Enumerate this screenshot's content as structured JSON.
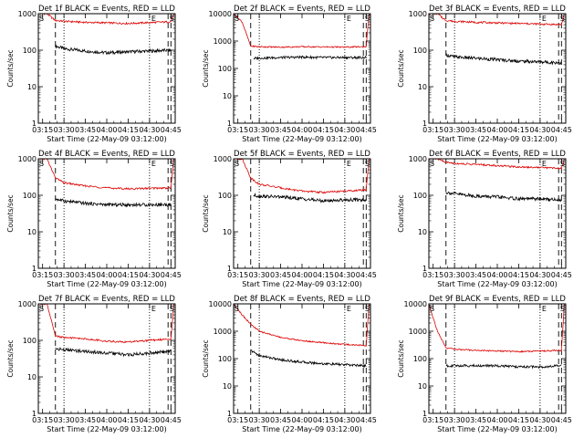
{
  "colors": {
    "events": "#000000",
    "lld": "#dd0000",
    "axis": "#000000",
    "background": "#ffffff"
  },
  "y_scale": "log",
  "chart_data": [
    {
      "type": "line",
      "title": "Det 1f BLACK = Events, RED = LLD",
      "xlabel": "Start Time (22-May-09 03:12:00)",
      "ylabel": "Counts/sec",
      "xlim": [
        "03:12",
        "04:48"
      ],
      "ylim": [
        1,
        1000
      ],
      "x_ticks": [
        "03:15",
        "03:30",
        "03:45",
        "04:00",
        "04:15",
        "04:30",
        "04:45"
      ],
      "y_ticks": [
        "1",
        "10",
        "100",
        "1000"
      ],
      "corner_labels": [
        "S",
        "E",
        "S"
      ],
      "series": [
        {
          "name": "Events",
          "x": [
            "03:24",
            "03:30",
            "03:45",
            "04:00",
            "04:15",
            "04:30",
            "04:45"
          ],
          "values": [
            130,
            110,
            95,
            85,
            90,
            95,
            100
          ]
        },
        {
          "name": "LLD",
          "x": [
            "03:12",
            "03:18",
            "03:24",
            "03:30",
            "03:45",
            "04:00",
            "04:15",
            "04:30",
            "04:45",
            "04:47"
          ],
          "values": [
            1000,
            1000,
            650,
            620,
            580,
            560,
            540,
            570,
            600,
            1000
          ]
        }
      ],
      "vlines": {
        "dashed": [
          "03:24",
          "04:43",
          "04:45"
        ],
        "dotted": [
          "03:30",
          "04:30"
        ]
      }
    },
    {
      "type": "line",
      "title": "Det 2f BLACK = Events, RED = LLD",
      "xlabel": "Start Time (22-May-09 03:12:00)",
      "ylabel": "Counts/sec",
      "xlim": [
        "03:12",
        "04:48"
      ],
      "ylim": [
        1,
        10000
      ],
      "x_ticks": [
        "03:15",
        "03:30",
        "03:45",
        "04:00",
        "04:15",
        "04:30",
        "04:45"
      ],
      "y_ticks": [
        "1",
        "10",
        "100",
        "1000",
        "10000"
      ],
      "corner_labels": [
        "S",
        "E",
        "S"
      ],
      "series": [
        {
          "name": "Events",
          "x": [
            "03:26",
            "03:30",
            "03:45",
            "04:00",
            "04:15",
            "04:30",
            "04:45"
          ],
          "values": [
            230,
            240,
            250,
            260,
            250,
            250,
            250
          ]
        },
        {
          "name": "LLD",
          "x": [
            "03:12",
            "03:18",
            "03:24",
            "03:30",
            "03:45",
            "04:00",
            "04:15",
            "04:30",
            "04:45",
            "04:47"
          ],
          "values": [
            10000,
            5000,
            650,
            620,
            600,
            620,
            610,
            600,
            620,
            10000
          ]
        }
      ],
      "vlines": {
        "dashed": [
          "03:24",
          "04:43",
          "04:45"
        ],
        "dotted": [
          "03:30",
          "04:30"
        ]
      }
    },
    {
      "type": "line",
      "title": "Det 3f BLACK = Events, RED = LLD",
      "xlabel": "Start Time (22-May-09 03:12:00)",
      "ylabel": "Counts/sec",
      "xlim": [
        "03:12",
        "04:48"
      ],
      "ylim": [
        1,
        1000
      ],
      "x_ticks": [
        "03:15",
        "03:30",
        "03:45",
        "04:00",
        "04:15",
        "04:30",
        "04:45"
      ],
      "y_ticks": [
        "1",
        "10",
        "100",
        "1000"
      ],
      "corner_labels": [
        "S",
        "E",
        "S"
      ],
      "series": [
        {
          "name": "Events",
          "x": [
            "03:24",
            "03:30",
            "03:45",
            "04:00",
            "04:15",
            "04:30",
            "04:45"
          ],
          "values": [
            75,
            65,
            60,
            55,
            50,
            48,
            45
          ]
        },
        {
          "name": "LLD",
          "x": [
            "03:12",
            "03:18",
            "03:24",
            "03:30",
            "03:45",
            "04:00",
            "04:15",
            "04:30",
            "04:45",
            "04:47"
          ],
          "values": [
            1000,
            1000,
            650,
            620,
            580,
            560,
            540,
            520,
            500,
            1000
          ]
        }
      ],
      "vlines": {
        "dashed": [
          "03:24",
          "04:43",
          "04:45"
        ],
        "dotted": [
          "03:30",
          "04:30"
        ]
      }
    },
    {
      "type": "line",
      "title": "Det 4f BLACK = Events, RED = LLD",
      "xlabel": "Start Time (22-May-09 03:12:00)",
      "ylabel": "Counts/sec",
      "xlim": [
        "03:12",
        "04:48"
      ],
      "ylim": [
        1,
        1000
      ],
      "x_ticks": [
        "03:15",
        "03:30",
        "03:45",
        "04:00",
        "04:15",
        "04:30",
        "04:45"
      ],
      "y_ticks": [
        "1",
        "10",
        "100",
        "1000"
      ],
      "corner_labels": [
        "S",
        "E",
        "S"
      ],
      "series": [
        {
          "name": "Events",
          "x": [
            "03:24",
            "03:30",
            "03:45",
            "04:00",
            "04:15",
            "04:30",
            "04:45"
          ],
          "values": [
            80,
            70,
            60,
            55,
            55,
            55,
            55
          ]
        },
        {
          "name": "LLD",
          "x": [
            "03:12",
            "03:18",
            "03:24",
            "03:30",
            "03:45",
            "04:00",
            "04:15",
            "04:30",
            "04:45",
            "04:47"
          ],
          "values": [
            1000,
            1000,
            300,
            220,
            180,
            160,
            150,
            155,
            160,
            1000
          ]
        }
      ],
      "vlines": {
        "dashed": [
          "03:24",
          "04:43",
          "04:45"
        ],
        "dotted": [
          "03:30",
          "04:30"
        ]
      }
    },
    {
      "type": "line",
      "title": "Det 5f BLACK = Events, RED = LLD",
      "xlabel": "Start Time (22-May-09 03:12:00)",
      "ylabel": "Counts/sec",
      "xlim": [
        "03:12",
        "04:48"
      ],
      "ylim": [
        1,
        1000
      ],
      "x_ticks": [
        "03:15",
        "03:30",
        "03:45",
        "04:00",
        "04:15",
        "04:30",
        "04:45"
      ],
      "y_ticks": [
        "1",
        "10",
        "100",
        "1000"
      ],
      "corner_labels": [
        "S",
        "E",
        "S"
      ],
      "series": [
        {
          "name": "Events",
          "x": [
            "03:26",
            "03:30",
            "03:45",
            "04:00",
            "04:15",
            "04:30",
            "04:45"
          ],
          "values": [
            100,
            95,
            90,
            80,
            70,
            75,
            75
          ]
        },
        {
          "name": "LLD",
          "x": [
            "03:12",
            "03:18",
            "03:24",
            "03:30",
            "03:45",
            "04:00",
            "04:15",
            "04:30",
            "04:45",
            "04:47"
          ],
          "values": [
            1000,
            1000,
            300,
            200,
            160,
            130,
            120,
            130,
            140,
            1000
          ]
        }
      ],
      "vlines": {
        "dashed": [
          "03:24",
          "04:43",
          "04:45"
        ],
        "dotted": [
          "03:30",
          "04:30"
        ]
      }
    },
    {
      "type": "line",
      "title": "Det 6f BLACK = Events, RED = LLD",
      "xlabel": "Start Time (22-May-09 03:12:00)",
      "ylabel": "Counts/sec",
      "xlim": [
        "03:12",
        "04:48"
      ],
      "ylim": [
        1,
        1000
      ],
      "x_ticks": [
        "03:15",
        "03:30",
        "03:45",
        "04:00",
        "04:15",
        "04:30",
        "04:45"
      ],
      "y_ticks": [
        "1",
        "10",
        "100",
        "1000"
      ],
      "corner_labels": [
        "S",
        "E",
        "S"
      ],
      "series": [
        {
          "name": "Events",
          "x": [
            "03:24",
            "03:30",
            "03:45",
            "04:00",
            "04:15",
            "04:30",
            "04:45"
          ],
          "values": [
            120,
            110,
            95,
            90,
            80,
            80,
            75
          ]
        },
        {
          "name": "LLD",
          "x": [
            "03:12",
            "03:18",
            "03:24",
            "03:30",
            "03:45",
            "04:00",
            "04:15",
            "04:30",
            "04:45",
            "04:47"
          ],
          "values": [
            1000,
            1000,
            800,
            750,
            700,
            650,
            600,
            580,
            550,
            1000
          ]
        }
      ],
      "vlines": {
        "dashed": [
          "03:24",
          "04:43",
          "04:45"
        ],
        "dotted": [
          "03:30",
          "04:30"
        ]
      }
    },
    {
      "type": "line",
      "title": "Det 7f BLACK = Events, RED = LLD",
      "xlabel": "Start Time (22-May-09 03:12:00)",
      "ylabel": "Counts/sec",
      "xlim": [
        "03:12",
        "04:48"
      ],
      "ylim": [
        1,
        1000
      ],
      "x_ticks": [
        "03:15",
        "03:30",
        "03:45",
        "04:00",
        "04:15",
        "04:30",
        "04:45"
      ],
      "y_ticks": [
        "1",
        "10",
        "100",
        "1000"
      ],
      "corner_labels": [
        "S",
        "E",
        "S"
      ],
      "series": [
        {
          "name": "Events",
          "x": [
            "03:24",
            "03:30",
            "03:45",
            "04:00",
            "04:15",
            "04:30",
            "04:45"
          ],
          "values": [
            60,
            55,
            50,
            45,
            40,
            45,
            50
          ]
        },
        {
          "name": "LLD",
          "x": [
            "03:12",
            "03:18",
            "03:24",
            "03:30",
            "03:45",
            "04:00",
            "04:15",
            "04:30",
            "04:45",
            "04:47"
          ],
          "values": [
            1000,
            1000,
            130,
            120,
            110,
            95,
            90,
            100,
            110,
            1000
          ]
        }
      ],
      "vlines": {
        "dashed": [
          "03:24",
          "04:43",
          "04:45"
        ],
        "dotted": [
          "03:30",
          "04:30"
        ]
      }
    },
    {
      "type": "line",
      "title": "Det 8f BLACK = Events, RED = LLD",
      "xlabel": "Start Time (22-May-09 03:12:00)",
      "ylabel": "Counts/sec",
      "xlim": [
        "03:12",
        "04:48"
      ],
      "ylim": [
        1,
        10000
      ],
      "x_ticks": [
        "03:15",
        "03:30",
        "03:45",
        "04:00",
        "04:15",
        "04:30",
        "04:45"
      ],
      "y_ticks": [
        "1",
        "10",
        "100",
        "1000",
        "10000"
      ],
      "corner_labels": [
        "S",
        "E",
        "S"
      ],
      "series": [
        {
          "name": "Events",
          "x": [
            "03:24",
            "03:30",
            "03:45",
            "04:00",
            "04:15",
            "04:30",
            "04:45"
          ],
          "values": [
            200,
            130,
            90,
            75,
            65,
            60,
            55
          ]
        },
        {
          "name": "LLD",
          "x": [
            "03:12",
            "03:18",
            "03:24",
            "03:30",
            "03:45",
            "04:00",
            "04:15",
            "04:30",
            "04:45",
            "04:47"
          ],
          "values": [
            10000,
            4000,
            1800,
            1000,
            600,
            450,
            380,
            330,
            300,
            10000
          ]
        }
      ],
      "vlines": {
        "dashed": [
          "03:24",
          "04:43",
          "04:45"
        ],
        "dotted": [
          "03:30",
          "04:30"
        ]
      }
    },
    {
      "type": "line",
      "title": "Det 9f BLACK = Events, RED = LLD",
      "xlabel": "Start Time (22-May-09 03:12:00)",
      "ylabel": "Counts/sec",
      "xlim": [
        "03:12",
        "04:48"
      ],
      "ylim": [
        1,
        10000
      ],
      "x_ticks": [
        "03:15",
        "03:30",
        "03:45",
        "04:00",
        "04:15",
        "04:30",
        "04:45"
      ],
      "y_ticks": [
        "1",
        "10",
        "100",
        "1000",
        "10000"
      ],
      "corner_labels": [
        "S",
        "E",
        "S"
      ],
      "series": [
        {
          "name": "Events",
          "x": [
            "03:24",
            "03:30",
            "03:45",
            "04:00",
            "04:15",
            "04:30",
            "04:45"
          ],
          "values": [
            55,
            55,
            55,
            55,
            50,
            50,
            55
          ]
        },
        {
          "name": "LLD",
          "x": [
            "03:12",
            "03:18",
            "03:24",
            "03:30",
            "03:45",
            "04:00",
            "04:15",
            "04:30",
            "04:45",
            "04:47"
          ],
          "values": [
            10000,
            1000,
            250,
            220,
            200,
            190,
            180,
            190,
            200,
            10000
          ]
        }
      ],
      "vlines": {
        "dashed": [
          "03:24",
          "04:43",
          "04:45"
        ],
        "dotted": [
          "03:30",
          "04:30"
        ]
      }
    }
  ]
}
